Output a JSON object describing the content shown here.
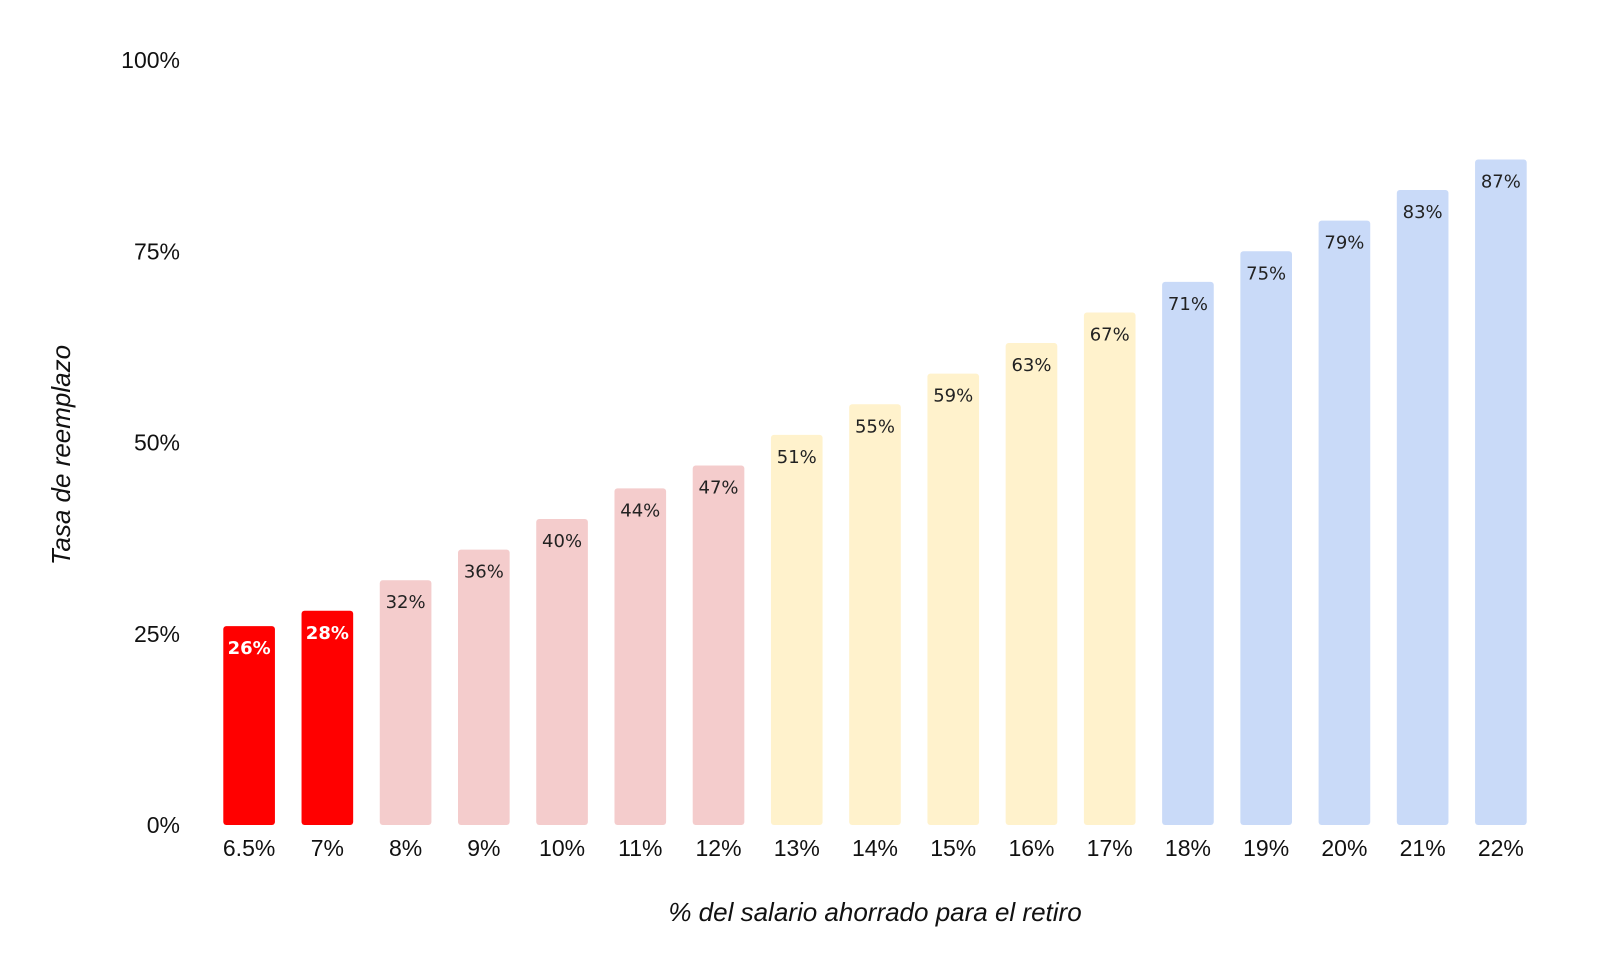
{
  "chart_data": {
    "type": "bar",
    "title": "",
    "xlabel": "% del salario ahorrado para el retiro",
    "ylabel": "Tasa de reemplazo",
    "categories": [
      "6.5%",
      "7%",
      "8%",
      "9%",
      "10%",
      "11%",
      "12%",
      "13%",
      "14%",
      "15%",
      "16%",
      "17%",
      "18%",
      "19%",
      "20%",
      "21%",
      "22%"
    ],
    "values": [
      26,
      28,
      32,
      36,
      40,
      44,
      47,
      51,
      55,
      59,
      63,
      67,
      71,
      75,
      79,
      83,
      87
    ],
    "data_labels": [
      "26%",
      "28%",
      "32%",
      "36%",
      "40%",
      "44%",
      "47%",
      "51%",
      "55%",
      "59%",
      "63%",
      "67%",
      "71%",
      "75%",
      "79%",
      "83%",
      "87%"
    ],
    "bar_colors": [
      "#ff0000",
      "#ff0000",
      "#f4cccc",
      "#f4cccc",
      "#f4cccc",
      "#f4cccc",
      "#f4cccc",
      "#fff2cc",
      "#fff2cc",
      "#fff2cc",
      "#fff2cc",
      "#fff2cc",
      "#c9daf8",
      "#c9daf8",
      "#c9daf8",
      "#c9daf8",
      "#c9daf8"
    ],
    "y_ticks": [
      0,
      25,
      50,
      75,
      100
    ],
    "y_tick_labels": [
      "0%",
      "25%",
      "50%",
      "75%",
      "100%"
    ],
    "ylim": [
      0,
      100
    ],
    "grid": false,
    "legend": "none"
  }
}
